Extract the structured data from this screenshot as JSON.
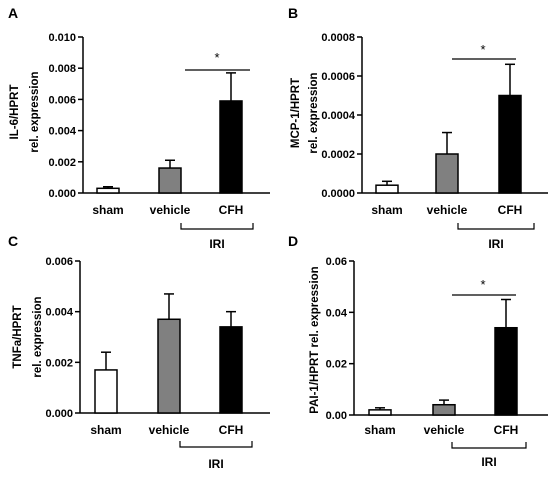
{
  "chart_data": [
    {
      "panel": "A",
      "type": "bar",
      "categories": [
        "sham",
        "vehicle",
        "CFH"
      ],
      "values": [
        0.0003,
        0.0016,
        0.0059
      ],
      "errors": [
        0.0001,
        0.0005,
        0.0018
      ],
      "bar_colors": [
        "#ffffff",
        "#808080",
        "#000000"
      ],
      "ylabel_lines": [
        "IL-6/HPRT",
        "rel. expression"
      ],
      "yticks": [
        "0.000",
        "0.002",
        "0.004",
        "0.006",
        "0.008",
        "0.010"
      ],
      "ylim": [
        0,
        0.01
      ],
      "group_label": "IRI",
      "significance": "*"
    },
    {
      "panel": "B",
      "type": "bar",
      "categories": [
        "sham",
        "vehicle",
        "CFH"
      ],
      "values": [
        4e-05,
        0.0002,
        0.0005
      ],
      "errors": [
        2e-05,
        0.00011,
        0.00016
      ],
      "bar_colors": [
        "#ffffff",
        "#808080",
        "#000000"
      ],
      "ylabel_lines": [
        "MCP-1/HPRT",
        "rel. expression"
      ],
      "yticks": [
        "0.0000",
        "0.0002",
        "0.0004",
        "0.0006",
        "0.0008"
      ],
      "ylim": [
        0,
        0.0008
      ],
      "group_label": "IRI",
      "significance": "*"
    },
    {
      "panel": "C",
      "type": "bar",
      "categories": [
        "sham",
        "vehicle",
        "CFH"
      ],
      "values": [
        0.0017,
        0.0037,
        0.0034
      ],
      "errors": [
        0.0007,
        0.001,
        0.0006
      ],
      "bar_colors": [
        "#ffffff",
        "#808080",
        "#000000"
      ],
      "ylabel_lines": [
        "TNFa/HPRT",
        "rel. expression"
      ],
      "yticks": [
        "0.000",
        "0.002",
        "0.004",
        "0.006"
      ],
      "ylim": [
        0,
        0.006
      ],
      "group_label": "IRI",
      "significance": ""
    },
    {
      "panel": "D",
      "type": "bar",
      "categories": [
        "sham",
        "vehicle",
        "CFH"
      ],
      "values": [
        0.002,
        0.004,
        0.034
      ],
      "errors": [
        0.0008,
        0.0018,
        0.011
      ],
      "bar_colors": [
        "#ffffff",
        "#808080",
        "#000000"
      ],
      "ylabel_lines": [
        "PAI-1/HPRT rel. expression"
      ],
      "yticks": [
        "0.00",
        "0.02",
        "0.04",
        "0.06"
      ],
      "ylim": [
        0,
        0.06
      ],
      "group_label": "IRI",
      "significance": "*"
    }
  ]
}
